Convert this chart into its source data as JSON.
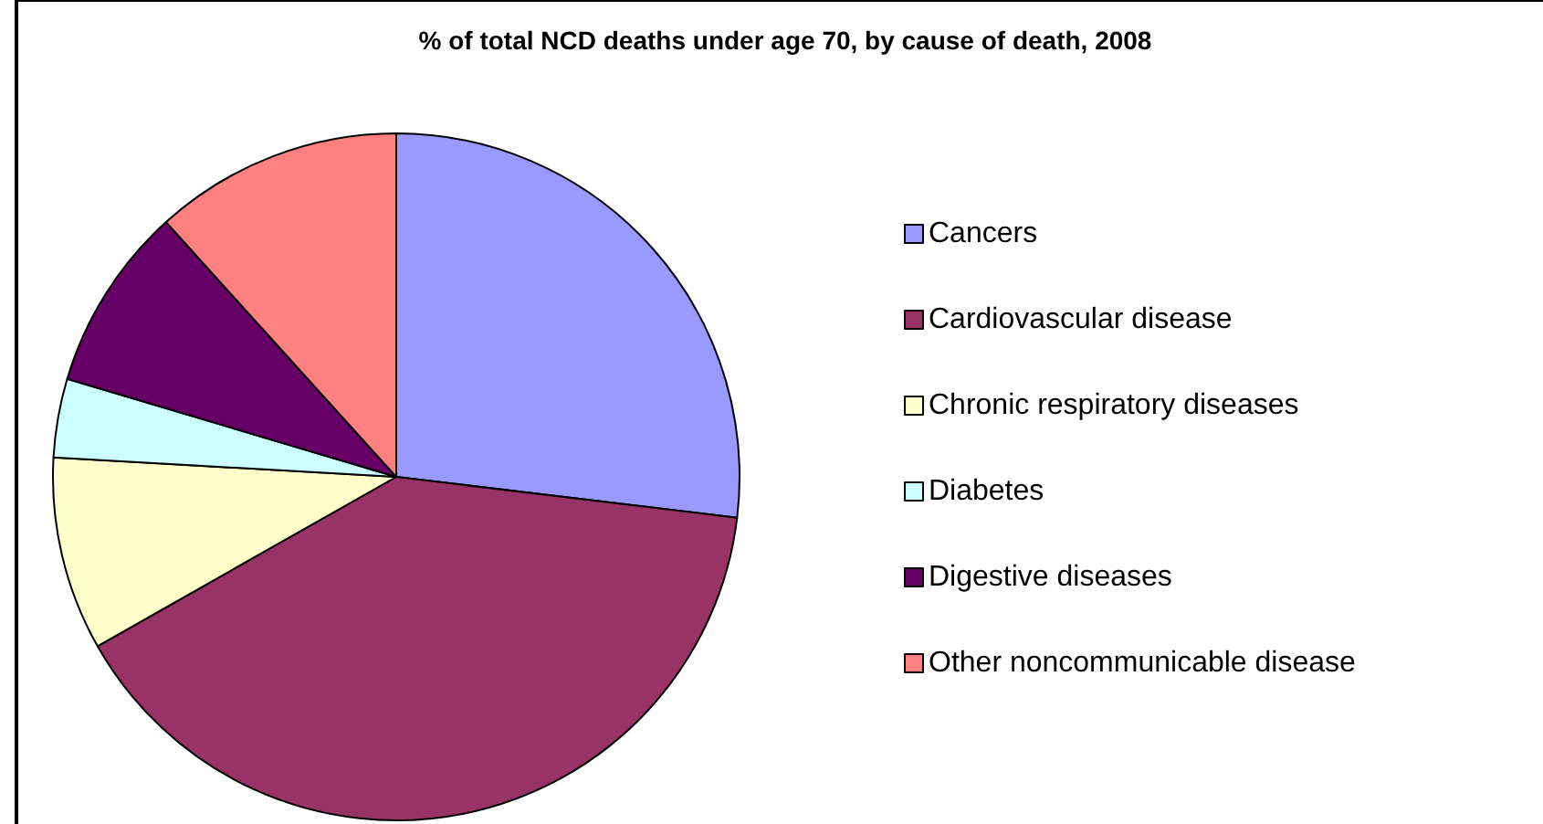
{
  "chart_data": {
    "type": "pie",
    "title": "% of total NCD deaths under age 70, by cause of death, 2008",
    "categories": [
      "Cancers",
      "Cardiovascular disease",
      "Chronic respiratory diseases",
      "Diabetes",
      "Digestive diseases",
      "Other noncommunicable disease"
    ],
    "values": [
      26.9,
      39.9,
      9.1,
      3.7,
      8.7,
      11.7
    ],
    "colors": [
      "#9999ff",
      "#993366",
      "#ffffcc",
      "#ccffff",
      "#660066",
      "#ff8080"
    ],
    "legend": "right"
  }
}
